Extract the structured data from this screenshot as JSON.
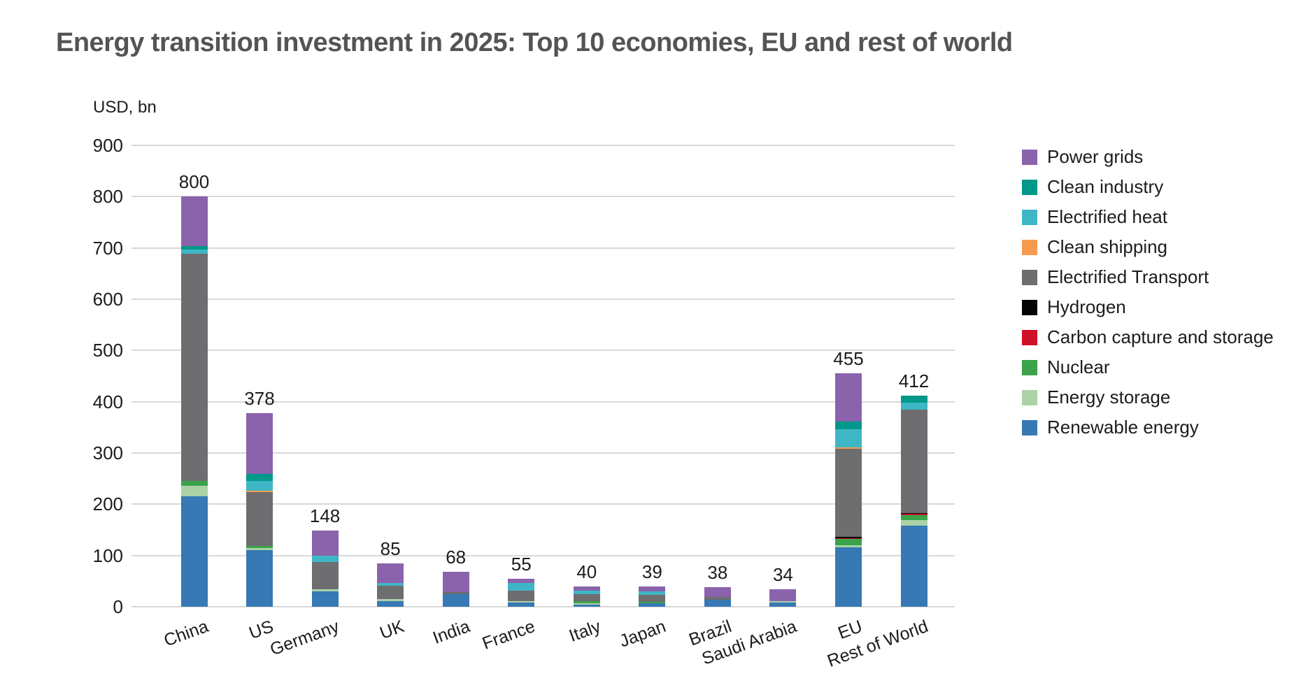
{
  "title": "Energy transition investment in 2025: Top 10 economies, EU and rest of world",
  "chart_data": {
    "type": "bar",
    "stacked": true,
    "title": "Energy transition investment in 2025: Top 10 economies, EU and rest of world",
    "y_axis_title": "USD, bn",
    "ylim": [
      0,
      900
    ],
    "yticks": [
      0,
      100,
      200,
      300,
      400,
      500,
      600,
      700,
      800,
      900
    ],
    "grid": "horizontal",
    "legend_position": "right",
    "categories": [
      "China",
      "US",
      "Germany",
      "UK",
      "India",
      "France",
      "Italy",
      "Japan",
      "Brazil",
      "Saudi Arabia",
      "EU",
      "Rest of World"
    ],
    "totals": [
      800,
      378,
      148,
      85,
      68,
      55,
      40,
      39,
      38,
      34,
      455,
      412
    ],
    "series": [
      {
        "name": "Power grids",
        "color": "#8A63AC",
        "values": [
          96,
          119,
          49,
          38,
          39,
          9,
          9,
          9,
          19,
          23,
          94,
          0
        ]
      },
      {
        "name": "Clean industry",
        "color": "#00988A",
        "values": [
          7,
          13,
          0,
          0,
          0,
          0,
          0,
          0,
          0,
          0,
          15,
          14
        ]
      },
      {
        "name": "Electrified heat",
        "color": "#3FB6C5",
        "values": [
          9,
          20,
          12,
          6,
          0,
          14,
          7,
          7,
          0,
          0,
          35,
          14
        ]
      },
      {
        "name": "Clean shipping",
        "color": "#F79A4D",
        "values": [
          0,
          2,
          0,
          0,
          0,
          0,
          0,
          0,
          0,
          0,
          3,
          0
        ]
      },
      {
        "name": "Electrified Transport",
        "color": "#6E6D70",
        "values": [
          443,
          105,
          53,
          26,
          5,
          21,
          13,
          13,
          5,
          0,
          172,
          201
        ]
      },
      {
        "name": "Hydrogen",
        "color": "#040404",
        "values": [
          0,
          0,
          0,
          0,
          0,
          0,
          0,
          0,
          0,
          0,
          2,
          2
        ]
      },
      {
        "name": "Carbon capture and storage",
        "color": "#CF1127",
        "values": [
          0,
          0,
          0,
          0,
          0,
          0,
          0,
          0,
          0,
          0,
          2,
          2
        ]
      },
      {
        "name": "Nuclear",
        "color": "#3AA34A",
        "values": [
          9,
          5,
          0,
          0,
          0,
          0,
          4,
          3,
          0,
          0,
          12,
          10
        ]
      },
      {
        "name": "Energy storage",
        "color": "#ABD2A6",
        "values": [
          21,
          3,
          4,
          4,
          0,
          3,
          3,
          0,
          0,
          3,
          4,
          11
        ]
      },
      {
        "name": "Renewable energy",
        "color": "#3679B4",
        "values": [
          215,
          111,
          30,
          11,
          24,
          8,
          4,
          7,
          14,
          8,
          116,
          158
        ]
      }
    ]
  }
}
